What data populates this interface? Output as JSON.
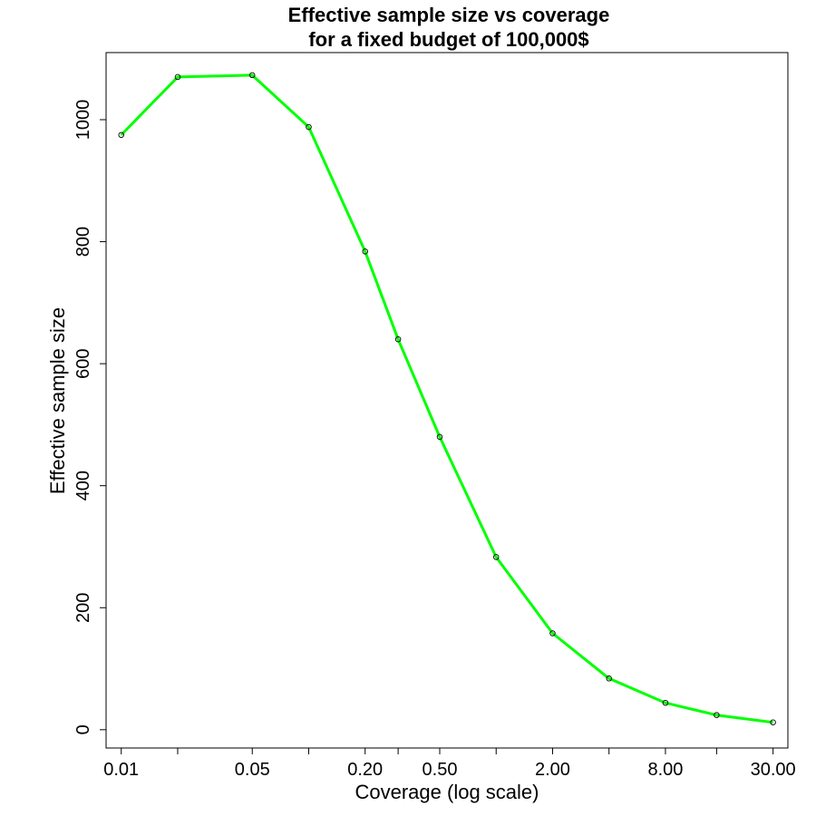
{
  "chart_data": {
    "type": "line",
    "title": "Effective sample size vs coverage",
    "subtitle": "for a fixed budget of 100,000$",
    "xlabel": "Coverage (log scale)",
    "ylabel": "Effective sample size",
    "x_scale": "log",
    "x_ticks": [
      {
        "value": 0.01,
        "label": "0.01"
      },
      {
        "value": 0.02,
        "label": ""
      },
      {
        "value": 0.05,
        "label": "0.05"
      },
      {
        "value": 0.1,
        "label": ""
      },
      {
        "value": 0.2,
        "label": "0.20"
      },
      {
        "value": 0.3,
        "label": ""
      },
      {
        "value": 0.5,
        "label": "0.50"
      },
      {
        "value": 1.0,
        "label": ""
      },
      {
        "value": 2.0,
        "label": "2.00"
      },
      {
        "value": 4.0,
        "label": ""
      },
      {
        "value": 8.0,
        "label": "8.00"
      },
      {
        "value": 15.0,
        "label": ""
      },
      {
        "value": 30.0,
        "label": "30.00"
      }
    ],
    "y_ticks": [
      0,
      200,
      400,
      600,
      800,
      1000
    ],
    "xlim": [
      0.0083,
      36
    ],
    "ylim": [
      -30,
      1110
    ],
    "grid": false,
    "series": [
      {
        "color": "#00ff00",
        "x": [
          0.01,
          0.02,
          0.05,
          0.1,
          0.2,
          0.3,
          0.5,
          1.0,
          2.0,
          4.0,
          8.0,
          15.0,
          30.0
        ],
        "y": [
          975,
          1070,
          1073,
          988,
          784,
          640,
          480,
          283,
          158,
          84,
          44,
          24,
          12
        ]
      }
    ]
  }
}
